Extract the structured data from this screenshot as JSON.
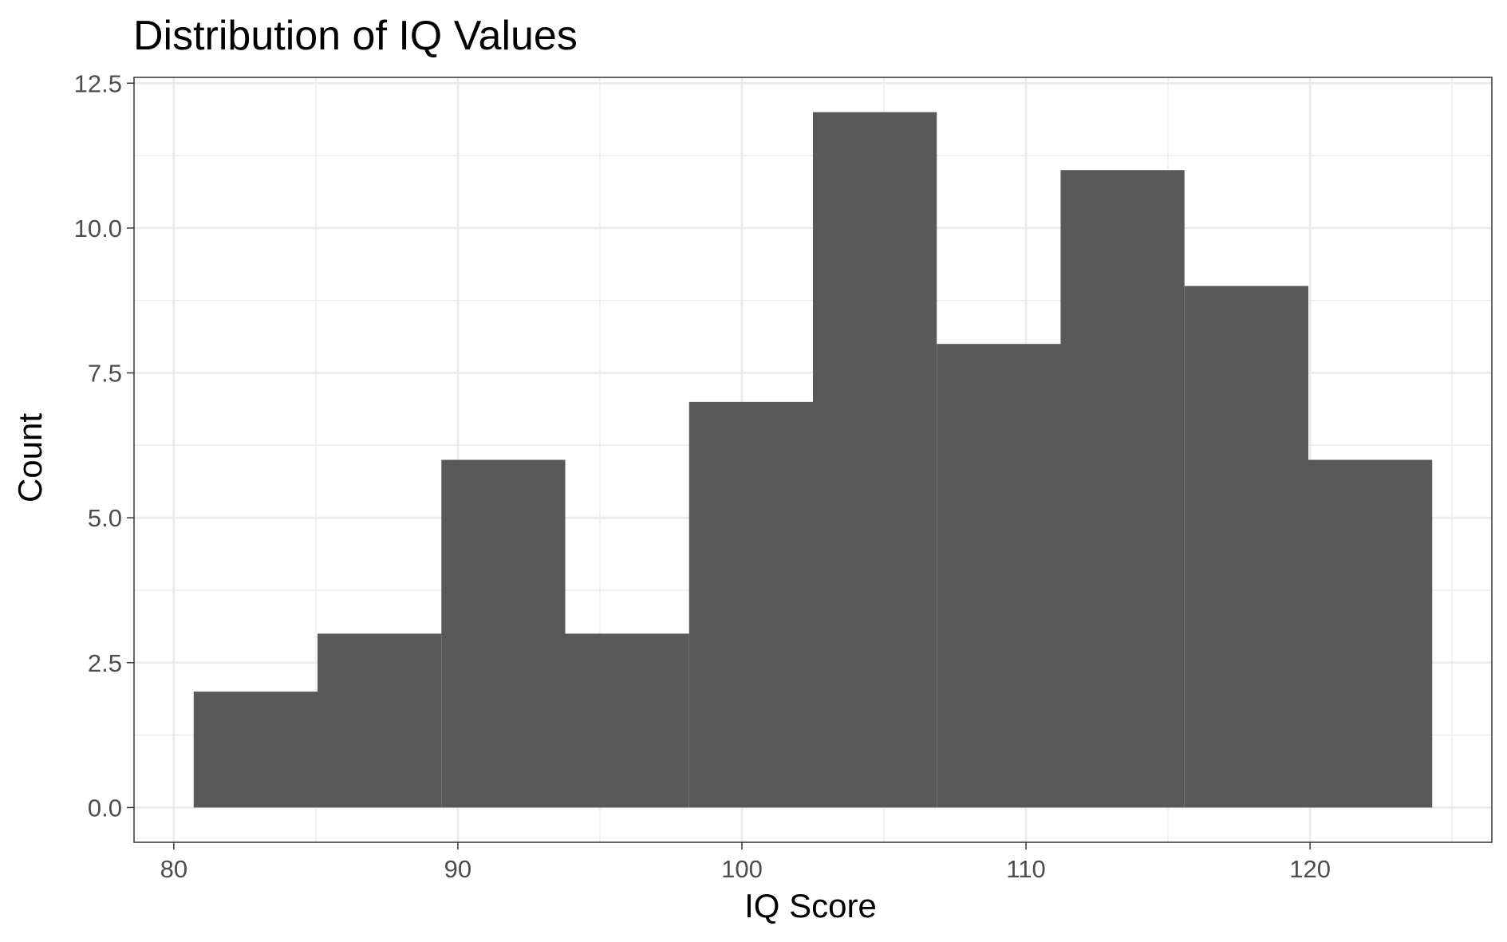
{
  "chart_data": {
    "type": "bar",
    "title": "Distribution of IQ Values",
    "xlabel": "IQ Score",
    "ylabel": "Count",
    "bins": [
      {
        "x0": 80.7,
        "x1": 85.06,
        "count": 2
      },
      {
        "x0": 85.06,
        "x1": 89.42,
        "count": 3
      },
      {
        "x0": 89.42,
        "x1": 93.78,
        "count": 6
      },
      {
        "x0": 93.78,
        "x1": 98.14,
        "count": 3
      },
      {
        "x0": 98.14,
        "x1": 102.5,
        "count": 7
      },
      {
        "x0": 102.5,
        "x1": 106.86,
        "count": 12
      },
      {
        "x0": 106.86,
        "x1": 111.22,
        "count": 8
      },
      {
        "x0": 111.22,
        "x1": 115.58,
        "count": 11
      },
      {
        "x0": 115.58,
        "x1": 119.94,
        "count": 9
      },
      {
        "x0": 119.94,
        "x1": 124.3,
        "count": 6
      }
    ],
    "xlim": [
      78.6,
      126.4
    ],
    "ylim": [
      -0.6,
      12.6
    ],
    "xticks": [
      80,
      90,
      100,
      110,
      120
    ],
    "xtick_labels": [
      "80",
      "90",
      "100",
      "110",
      "120"
    ],
    "yticks": [
      0,
      2.5,
      5,
      7.5,
      10,
      12.5
    ],
    "ytick_labels": [
      "0.0",
      "2.5",
      "5.0",
      "7.5",
      "10.0",
      "12.5"
    ],
    "grid": true,
    "bar_color": "#595959",
    "grid_color": "#ebebeb",
    "panel_border_color": "#333333"
  }
}
